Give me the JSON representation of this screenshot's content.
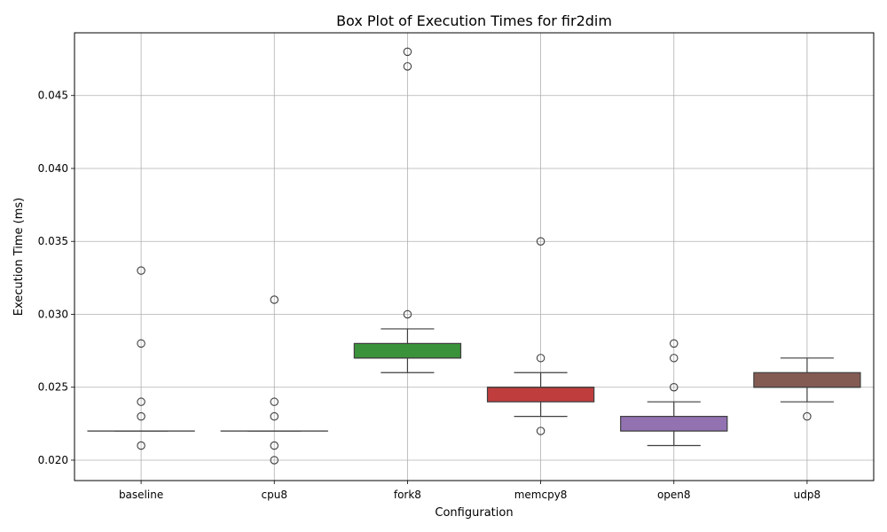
{
  "chart_data": {
    "type": "box",
    "title": "Box Plot of Execution Times for fir2dim",
    "xlabel": "Configuration",
    "ylabel": "Execution Time (ms)",
    "ylim": [
      0.0186,
      0.0493
    ],
    "yticks": [
      "0.020",
      "0.025",
      "0.030",
      "0.035",
      "0.040",
      "0.045"
    ],
    "grid": true,
    "categories": [
      "baseline",
      "cpu8",
      "fork8",
      "memcpy8",
      "open8",
      "udp8"
    ],
    "boxes": [
      {
        "name": "baseline",
        "q1": 0.022,
        "median": 0.022,
        "q3": 0.022,
        "whisker_low": 0.022,
        "whisker_high": 0.022,
        "outliers": [
          0.033,
          0.028,
          0.024,
          0.023,
          0.021
        ],
        "color": "#1f77b4"
      },
      {
        "name": "cpu8",
        "q1": 0.022,
        "median": 0.022,
        "q3": 0.022,
        "whisker_low": 0.022,
        "whisker_high": 0.022,
        "outliers": [
          0.031,
          0.024,
          0.023,
          0.021,
          0.02
        ],
        "color": "#ff7f0e"
      },
      {
        "name": "fork8",
        "q1": 0.027,
        "median": 0.027,
        "q3": 0.028,
        "whisker_low": 0.026,
        "whisker_high": 0.029,
        "outliers": [
          0.048,
          0.047,
          0.03
        ],
        "color": "#3a923a"
      },
      {
        "name": "memcpy8",
        "q1": 0.024,
        "median": 0.025,
        "q3": 0.025,
        "whisker_low": 0.023,
        "whisker_high": 0.026,
        "outliers": [
          0.035,
          0.027,
          0.022
        ],
        "color": "#c03d3e"
      },
      {
        "name": "open8",
        "q1": 0.022,
        "median": 0.022,
        "q3": 0.023,
        "whisker_low": 0.021,
        "whisker_high": 0.024,
        "outliers": [
          0.028,
          0.027,
          0.025
        ],
        "color": "#9372b2"
      },
      {
        "name": "udp8",
        "q1": 0.025,
        "median": 0.025,
        "q3": 0.026,
        "whisker_low": 0.024,
        "whisker_high": 0.027,
        "outliers": [
          0.023
        ],
        "color": "#845b53"
      }
    ]
  }
}
